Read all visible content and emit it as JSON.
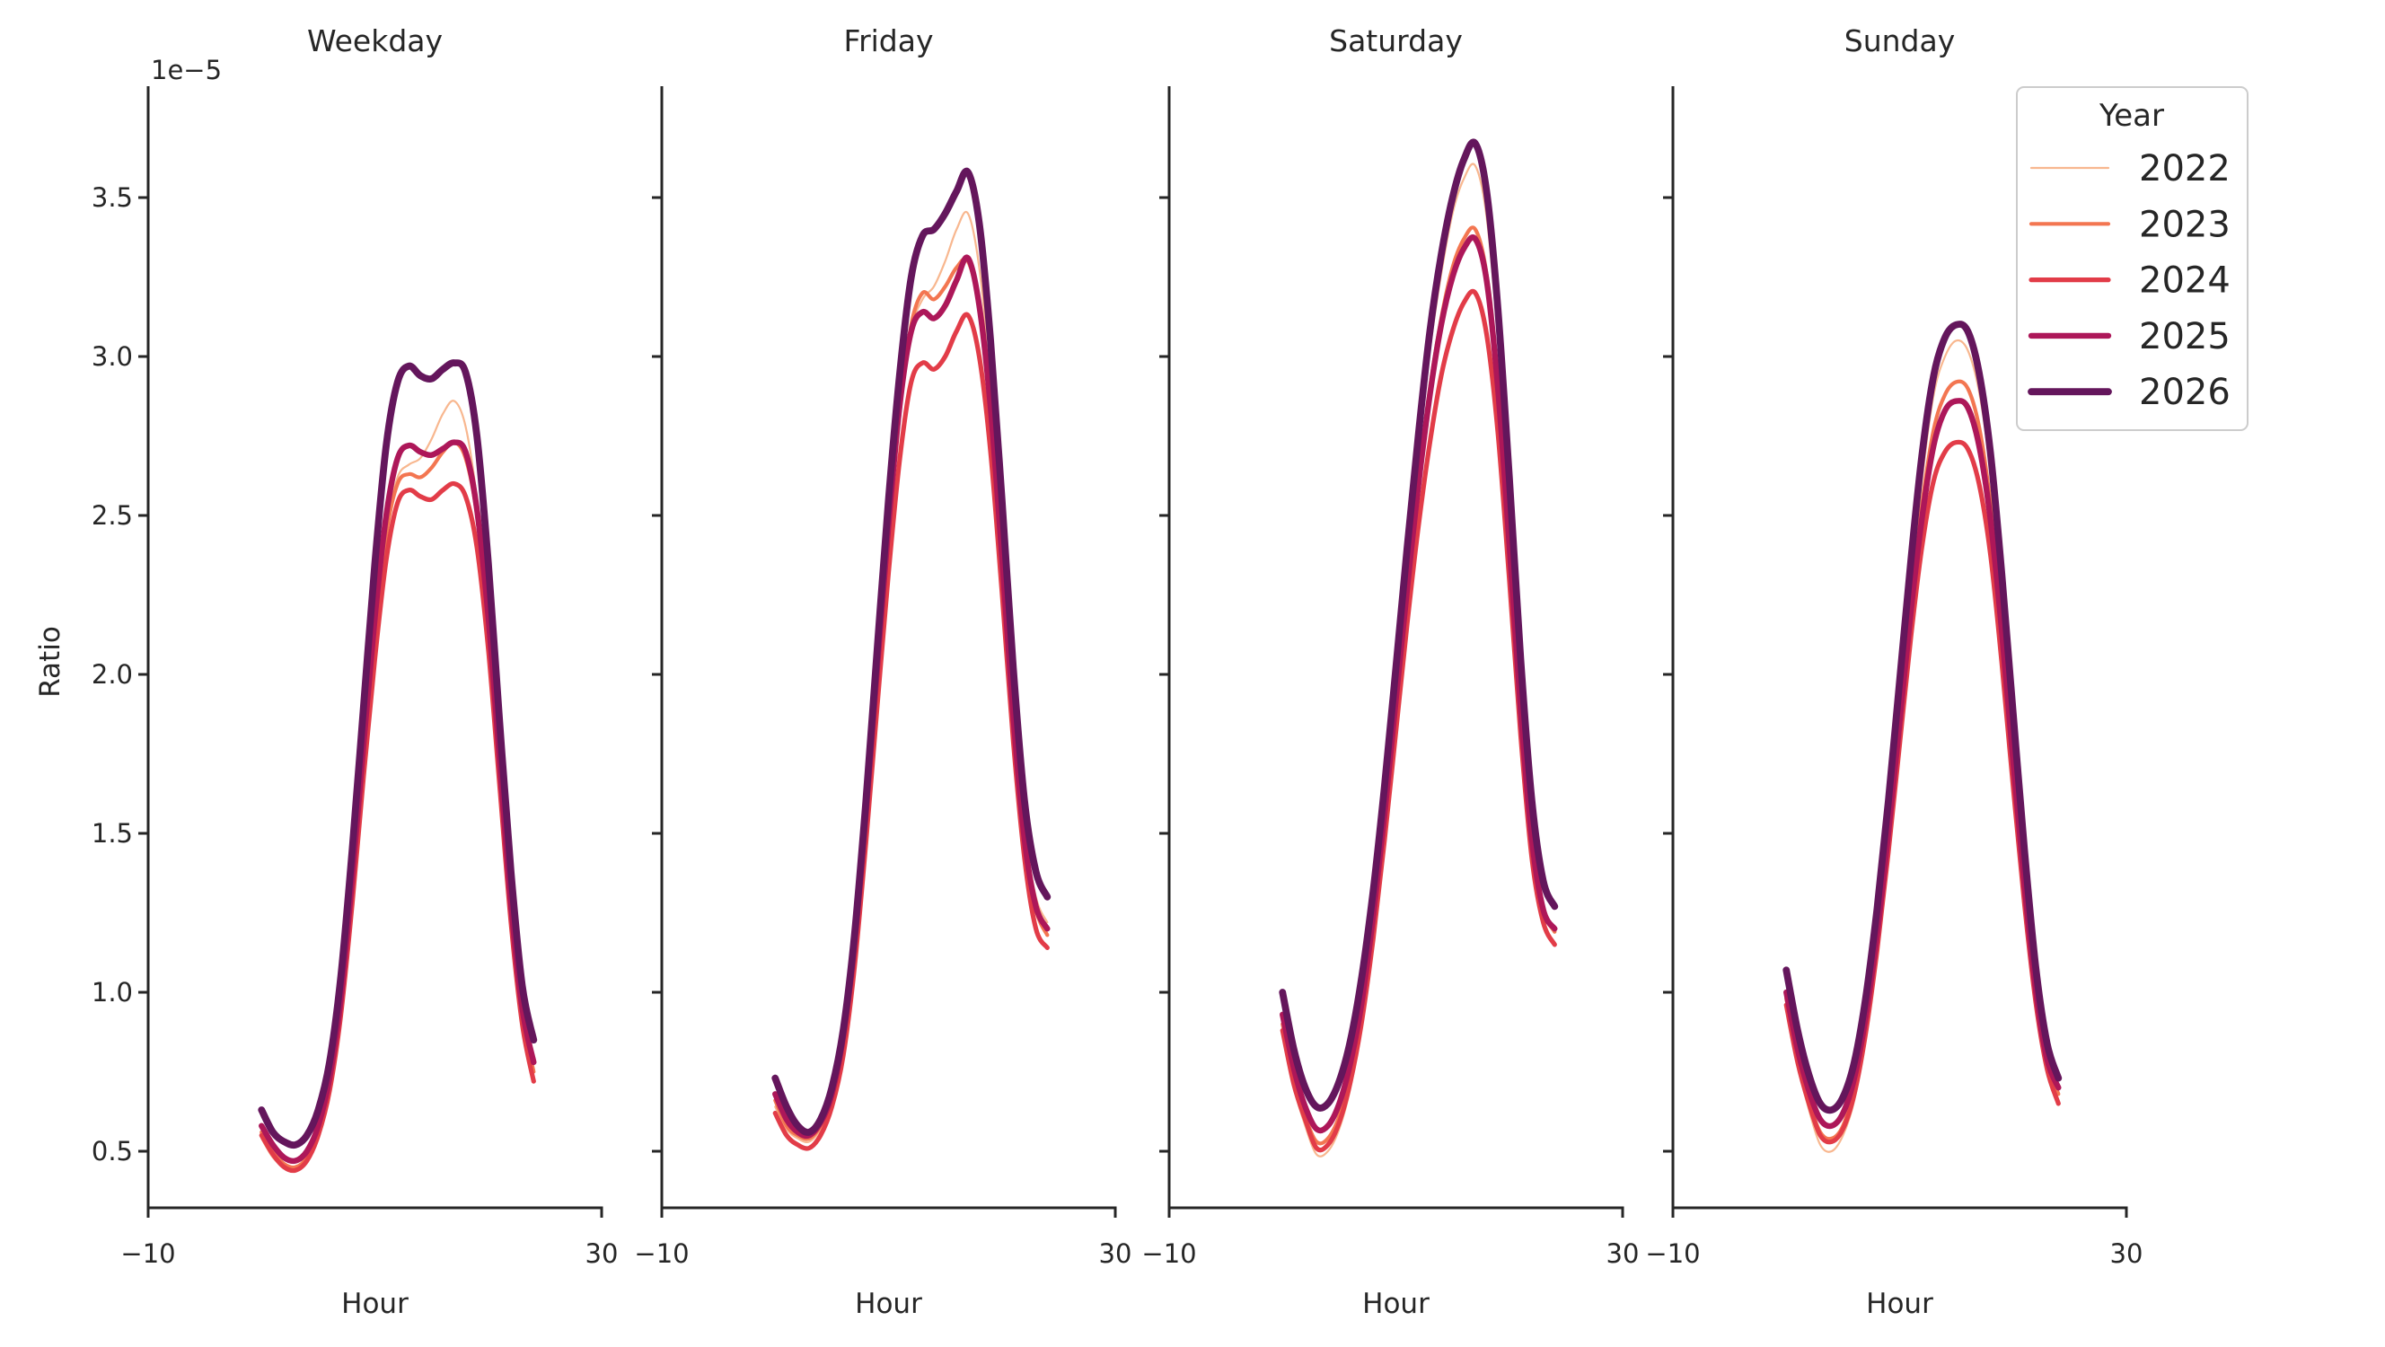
{
  "figure": {
    "background": "#ffffff",
    "text_color": "#262626",
    "spine_color": "#262626",
    "legend_border_color": "#cccccc"
  },
  "chart_data": {
    "type": "line",
    "facet_titles": [
      "Weekday",
      "Friday",
      "Saturday",
      "Sunday"
    ],
    "xlabel": "Hour",
    "ylabel": "Ratio",
    "y_offset_text": "1e−5",
    "xlim": [
      -10,
      30
    ],
    "ylim": [
      0.32,
      3.85
    ],
    "x_tick_values": [
      -10,
      30
    ],
    "x_tick_labels": [
      "−10",
      "30"
    ],
    "y_tick_values": [
      0.5,
      1.0,
      1.5,
      2.0,
      2.5,
      3.0,
      3.5
    ],
    "y_tick_labels": [
      "0.5",
      "1.0",
      "1.5",
      "2.0",
      "2.5",
      "3.0",
      "3.5"
    ],
    "grid": "off",
    "legend": {
      "title": "Year",
      "position": "upper right",
      "entries": [
        "2022",
        "2023",
        "2024",
        "2025",
        "2026"
      ]
    },
    "x_hours": [
      0,
      1,
      2,
      3,
      4,
      5,
      6,
      7,
      8,
      9,
      10,
      11,
      12,
      13,
      14,
      15,
      16,
      17,
      18,
      19,
      20,
      21,
      22,
      23,
      24
    ],
    "series": [
      {
        "name": "2022",
        "color": "#f8b78f",
        "line_width": 2.2,
        "values": {
          "Weekday": [
            0.54,
            0.48,
            0.45,
            0.44,
            0.47,
            0.55,
            0.7,
            0.95,
            1.32,
            1.74,
            2.14,
            2.46,
            2.62,
            2.66,
            2.68,
            2.74,
            2.82,
            2.86,
            2.78,
            2.55,
            2.18,
            1.72,
            1.27,
            0.93,
            0.76
          ],
          "Friday": [
            0.64,
            0.57,
            0.54,
            0.53,
            0.57,
            0.66,
            0.83,
            1.12,
            1.52,
            1.98,
            2.42,
            2.8,
            3.08,
            3.18,
            3.22,
            3.3,
            3.4,
            3.45,
            3.28,
            2.92,
            2.44,
            1.92,
            1.52,
            1.3,
            1.22
          ],
          "Saturday": [
            0.87,
            0.7,
            0.58,
            0.49,
            0.5,
            0.57,
            0.7,
            0.9,
            1.18,
            1.52,
            1.92,
            2.32,
            2.7,
            3.02,
            3.26,
            3.45,
            3.56,
            3.6,
            3.44,
            3.05,
            2.52,
            1.96,
            1.52,
            1.28,
            1.2
          ],
          "Sunday": [
            0.95,
            0.77,
            0.63,
            0.52,
            0.5,
            0.55,
            0.66,
            0.86,
            1.14,
            1.48,
            1.86,
            2.26,
            2.62,
            2.88,
            3.0,
            3.05,
            3.02,
            2.89,
            2.64,
            2.26,
            1.82,
            1.4,
            1.04,
            0.8,
            0.68
          ]
        }
      },
      {
        "name": "2023",
        "color": "#f37651",
        "line_width": 4.2,
        "values": {
          "Weekday": [
            0.56,
            0.5,
            0.46,
            0.45,
            0.48,
            0.56,
            0.71,
            0.96,
            1.33,
            1.74,
            2.12,
            2.44,
            2.6,
            2.63,
            2.62,
            2.65,
            2.7,
            2.73,
            2.68,
            2.5,
            2.15,
            1.7,
            1.26,
            0.93,
            0.75
          ],
          "Friday": [
            0.66,
            0.58,
            0.55,
            0.54,
            0.58,
            0.67,
            0.84,
            1.14,
            1.55,
            2.0,
            2.45,
            2.83,
            3.1,
            3.2,
            3.18,
            3.22,
            3.28,
            3.3,
            3.15,
            2.82,
            2.35,
            1.85,
            1.47,
            1.26,
            1.18
          ],
          "Saturday": [
            0.9,
            0.73,
            0.61,
            0.53,
            0.54,
            0.61,
            0.74,
            0.94,
            1.22,
            1.55,
            1.92,
            2.28,
            2.62,
            2.9,
            3.12,
            3.28,
            3.37,
            3.4,
            3.26,
            2.92,
            2.42,
            1.9,
            1.48,
            1.26,
            1.19
          ],
          "Sunday": [
            0.98,
            0.8,
            0.66,
            0.56,
            0.54,
            0.58,
            0.7,
            0.9,
            1.17,
            1.5,
            1.86,
            2.22,
            2.54,
            2.77,
            2.88,
            2.92,
            2.9,
            2.78,
            2.54,
            2.18,
            1.76,
            1.36,
            1.02,
            0.79,
            0.68
          ]
        }
      },
      {
        "name": "2024",
        "color": "#e23c48",
        "line_width": 5.2,
        "values": {
          "Weekday": [
            0.55,
            0.49,
            0.45,
            0.44,
            0.47,
            0.55,
            0.69,
            0.93,
            1.28,
            1.68,
            2.05,
            2.36,
            2.54,
            2.58,
            2.56,
            2.55,
            2.58,
            2.6,
            2.56,
            2.4,
            2.08,
            1.65,
            1.22,
            0.9,
            0.72
          ],
          "Friday": [
            0.62,
            0.55,
            0.52,
            0.51,
            0.55,
            0.64,
            0.8,
            1.08,
            1.47,
            1.9,
            2.32,
            2.68,
            2.92,
            2.98,
            2.96,
            3.0,
            3.08,
            3.13,
            3.0,
            2.7,
            2.26,
            1.79,
            1.42,
            1.2,
            1.14
          ],
          "Saturday": [
            0.88,
            0.71,
            0.6,
            0.51,
            0.52,
            0.59,
            0.72,
            0.91,
            1.17,
            1.48,
            1.82,
            2.16,
            2.47,
            2.73,
            2.94,
            3.08,
            3.17,
            3.2,
            3.07,
            2.76,
            2.3,
            1.81,
            1.42,
            1.22,
            1.15
          ],
          "Sunday": [
            0.96,
            0.78,
            0.65,
            0.55,
            0.53,
            0.57,
            0.68,
            0.87,
            1.13,
            1.44,
            1.78,
            2.12,
            2.41,
            2.61,
            2.7,
            2.73,
            2.71,
            2.6,
            2.38,
            2.04,
            1.65,
            1.28,
            0.97,
            0.76,
            0.65
          ]
        }
      },
      {
        "name": "2025",
        "color": "#ad1759",
        "line_width": 6.4,
        "values": {
          "Weekday": [
            0.58,
            0.52,
            0.48,
            0.47,
            0.5,
            0.58,
            0.73,
            0.98,
            1.36,
            1.78,
            2.18,
            2.5,
            2.68,
            2.72,
            2.7,
            2.69,
            2.71,
            2.73,
            2.7,
            2.52,
            2.18,
            1.73,
            1.28,
            0.95,
            0.78
          ],
          "Friday": [
            0.68,
            0.6,
            0.56,
            0.55,
            0.59,
            0.68,
            0.86,
            1.15,
            1.56,
            2.02,
            2.47,
            2.85,
            3.08,
            3.14,
            3.12,
            3.16,
            3.24,
            3.31,
            3.16,
            2.84,
            2.37,
            1.87,
            1.48,
            1.27,
            1.2
          ],
          "Saturday": [
            0.93,
            0.76,
            0.64,
            0.57,
            0.58,
            0.65,
            0.78,
            0.97,
            1.24,
            1.56,
            1.92,
            2.27,
            2.6,
            2.88,
            3.1,
            3.25,
            3.34,
            3.37,
            3.24,
            2.9,
            2.41,
            1.89,
            1.48,
            1.26,
            1.2
          ],
          "Sunday": [
            1.0,
            0.82,
            0.69,
            0.6,
            0.58,
            0.62,
            0.73,
            0.92,
            1.18,
            1.5,
            1.85,
            2.2,
            2.5,
            2.72,
            2.83,
            2.86,
            2.84,
            2.72,
            2.49,
            2.14,
            1.73,
            1.34,
            1.01,
            0.79,
            0.7
          ]
        }
      },
      {
        "name": "2026",
        "color": "#64165c",
        "line_width": 7.8,
        "values": {
          "Weekday": [
            0.63,
            0.56,
            0.53,
            0.52,
            0.55,
            0.63,
            0.78,
            1.05,
            1.45,
            1.9,
            2.35,
            2.72,
            2.92,
            2.97,
            2.94,
            2.93,
            2.96,
            2.98,
            2.95,
            2.75,
            2.35,
            1.85,
            1.38,
            1.02,
            0.85
          ],
          "Friday": [
            0.73,
            0.64,
            0.58,
            0.56,
            0.6,
            0.7,
            0.88,
            1.18,
            1.6,
            2.08,
            2.55,
            2.95,
            3.25,
            3.38,
            3.4,
            3.45,
            3.52,
            3.58,
            3.42,
            3.05,
            2.55,
            2.02,
            1.6,
            1.38,
            1.3
          ],
          "Saturday": [
            1.0,
            0.82,
            0.7,
            0.64,
            0.65,
            0.72,
            0.85,
            1.05,
            1.32,
            1.65,
            2.02,
            2.4,
            2.76,
            3.08,
            3.32,
            3.5,
            3.62,
            3.67,
            3.52,
            3.15,
            2.62,
            2.05,
            1.6,
            1.35,
            1.27
          ],
          "Sunday": [
            1.07,
            0.88,
            0.74,
            0.65,
            0.63,
            0.67,
            0.78,
            0.98,
            1.26,
            1.6,
            1.98,
            2.36,
            2.7,
            2.94,
            3.06,
            3.1,
            3.08,
            2.95,
            2.7,
            2.32,
            1.88,
            1.45,
            1.08,
            0.84,
            0.73
          ]
        }
      }
    ]
  }
}
